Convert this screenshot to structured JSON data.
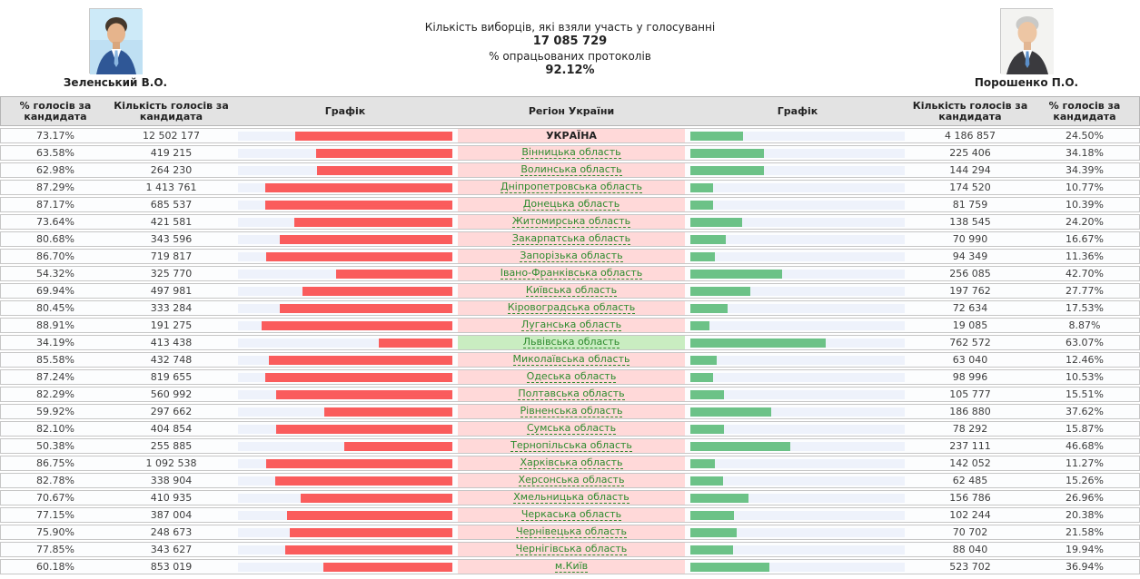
{
  "header": {
    "candidates": {
      "left": {
        "name": "Зеленський В.О."
      },
      "right": {
        "name": "Порошенко П.О."
      }
    },
    "turnout": {
      "label": "Кількість виборців, які взяли участь у голосуванні",
      "value": "17 085 729",
      "protocols_label": "% опрацьованих протоколів",
      "protocols_value": "92.12%"
    }
  },
  "colors": {
    "zelensky_bar": "#fa5c5c",
    "poroshenko_bar": "#6cc287",
    "bar_track": "#eef2fb",
    "region_cell_bg": "#ffd9d9",
    "highlight_region_bg": "#c9edc1",
    "region_link": "#2e8b2e"
  },
  "table": {
    "columns": [
      "% голосів за кандидата",
      "Кількість голосів за кандидата",
      "Графік",
      "Регіон України",
      "Графік",
      "Кількість голосів за кандидата",
      "% голосів за кандидата"
    ],
    "rows": [
      {
        "region": "УКРАЇНА",
        "total": true,
        "zel_pct": "73.17%",
        "zel_votes": "12 502 177",
        "por_votes": "4 186 857",
        "por_pct": "24.50%"
      },
      {
        "region": "Вінницька область",
        "zel_pct": "63.58%",
        "zel_votes": "419 215",
        "por_votes": "225 406",
        "por_pct": "34.18%"
      },
      {
        "region": "Волинська область",
        "zel_pct": "62.98%",
        "zel_votes": "264 230",
        "por_votes": "144 294",
        "por_pct": "34.39%"
      },
      {
        "region": "Дніпропетровська область",
        "zel_pct": "87.29%",
        "zel_votes": "1 413 761",
        "por_votes": "174 520",
        "por_pct": "10.77%"
      },
      {
        "region": "Донецька область",
        "zel_pct": "87.17%",
        "zel_votes": "685 537",
        "por_votes": "81 759",
        "por_pct": "10.39%"
      },
      {
        "region": "Житомирська область",
        "zel_pct": "73.64%",
        "zel_votes": "421 581",
        "por_votes": "138 545",
        "por_pct": "24.20%"
      },
      {
        "region": "Закарпатська область",
        "zel_pct": "80.68%",
        "zel_votes": "343 596",
        "por_votes": "70 990",
        "por_pct": "16.67%"
      },
      {
        "region": "Запорізька область",
        "zel_pct": "86.70%",
        "zel_votes": "719 817",
        "por_votes": "94 349",
        "por_pct": "11.36%"
      },
      {
        "region": "Івано-Франківська область",
        "zel_pct": "54.32%",
        "zel_votes": "325 770",
        "por_votes": "256 085",
        "por_pct": "42.70%"
      },
      {
        "region": "Київська область",
        "zel_pct": "69.94%",
        "zel_votes": "497 981",
        "por_votes": "197 762",
        "por_pct": "27.77%"
      },
      {
        "region": "Кіровоградська область",
        "zel_pct": "80.45%",
        "zel_votes": "333 284",
        "por_votes": "72 634",
        "por_pct": "17.53%"
      },
      {
        "region": "Луганська область",
        "zel_pct": "88.91%",
        "zel_votes": "191 275",
        "por_votes": "19 085",
        "por_pct": "8.87%"
      },
      {
        "region": "Львівська область",
        "highlight": true,
        "zel_pct": "34.19%",
        "zel_votes": "413 438",
        "por_votes": "762 572",
        "por_pct": "63.07%"
      },
      {
        "region": "Миколаївська область",
        "zel_pct": "85.58%",
        "zel_votes": "432 748",
        "por_votes": "63 040",
        "por_pct": "12.46%"
      },
      {
        "region": "Одеська область",
        "zel_pct": "87.24%",
        "zel_votes": "819 655",
        "por_votes": "98 996",
        "por_pct": "10.53%"
      },
      {
        "region": "Полтавська область",
        "zel_pct": "82.29%",
        "zel_votes": "560 992",
        "por_votes": "105 777",
        "por_pct": "15.51%"
      },
      {
        "region": "Рівненська область",
        "zel_pct": "59.92%",
        "zel_votes": "297 662",
        "por_votes": "186 880",
        "por_pct": "37.62%"
      },
      {
        "region": "Сумська область",
        "zel_pct": "82.10%",
        "zel_votes": "404 854",
        "por_votes": "78 292",
        "por_pct": "15.87%"
      },
      {
        "region": "Тернопільська область",
        "zel_pct": "50.38%",
        "zel_votes": "255 885",
        "por_votes": "237 111",
        "por_pct": "46.68%"
      },
      {
        "region": "Харківська область",
        "zel_pct": "86.75%",
        "zel_votes": "1 092 538",
        "por_votes": "142 052",
        "por_pct": "11.27%"
      },
      {
        "region": "Херсонська область",
        "zel_pct": "82.78%",
        "zel_votes": "338 904",
        "por_votes": "62 485",
        "por_pct": "15.26%"
      },
      {
        "region": "Хмельницька область",
        "zel_pct": "70.67%",
        "zel_votes": "410 935",
        "por_votes": "156 786",
        "por_pct": "26.96%"
      },
      {
        "region": "Черкаська область",
        "zel_pct": "77.15%",
        "zel_votes": "387 004",
        "por_votes": "102 244",
        "por_pct": "20.38%"
      },
      {
        "region": "Чернівецька область",
        "zel_pct": "75.90%",
        "zel_votes": "248 673",
        "por_votes": "70 702",
        "por_pct": "21.58%"
      },
      {
        "region": "Чернігівська область",
        "zel_pct": "77.85%",
        "zel_votes": "343 627",
        "por_votes": "88 040",
        "por_pct": "19.94%"
      },
      {
        "region": "м.Київ",
        "zel_pct": "60.18%",
        "zel_votes": "853 019",
        "por_votes": "523 702",
        "por_pct": "36.94%"
      }
    ]
  }
}
